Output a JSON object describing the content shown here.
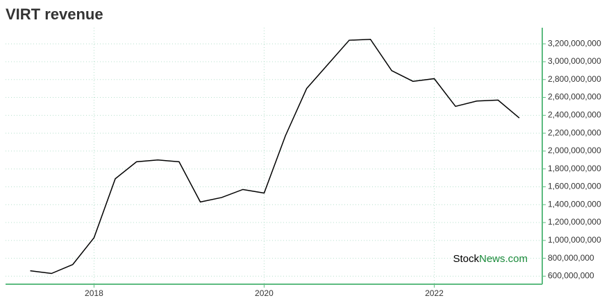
{
  "chart_data": {
    "type": "line",
    "title": "VIRT revenue",
    "x": [
      2017.25,
      2017.5,
      2017.75,
      2018.0,
      2018.25,
      2018.5,
      2018.75,
      2019.0,
      2019.25,
      2019.5,
      2019.75,
      2020.0,
      2020.25,
      2020.5,
      2020.75,
      2021.0,
      2021.25,
      2021.5,
      2021.75,
      2022.0,
      2022.25,
      2022.5,
      2022.75,
      2023.0
    ],
    "series": [
      {
        "color": "#000000",
        "values": [
          660000000,
          630000000,
          730000000,
          1030000000,
          1690000000,
          1880000000,
          1900000000,
          1880000000,
          1430000000,
          1480000000,
          1570000000,
          1530000000,
          2170000000,
          2700000000,
          2970000000,
          3240000000,
          3250000000,
          2900000000,
          2780000000,
          2810000000,
          2500000000,
          2560000000,
          2570000000,
          2370000000
        ]
      }
    ],
    "xlim": [
      2016.96,
      2023.27
    ],
    "xticks": [
      2018,
      2020,
      2022
    ],
    "ylim": [
      510000000,
      3380000000
    ],
    "yticks": [
      {
        "value": 600000000,
        "label": "600,000,000"
      },
      {
        "value": 800000000,
        "label": "800,000,000"
      },
      {
        "value": 1000000000,
        "label": "1,000,000,000"
      },
      {
        "value": 1200000000,
        "label": "1,200,000,000"
      },
      {
        "value": 1400000000,
        "label": "1,400,000,000"
      },
      {
        "value": 1600000000,
        "label": "1,600,000,000"
      },
      {
        "value": 1800000000,
        "label": "1,800,000,000"
      },
      {
        "value": 2000000000,
        "label": "2,000,000,000"
      },
      {
        "value": 2200000000,
        "label": "2,200,000,000"
      },
      {
        "value": 2400000000,
        "label": "2,400,000,000"
      },
      {
        "value": 2600000000,
        "label": "2,600,000,000"
      },
      {
        "value": 2800000000,
        "label": "2,800,000,000"
      },
      {
        "value": 3000000000,
        "label": "3,000,000,000"
      },
      {
        "value": 3200000000,
        "label": "3,200,000,000"
      }
    ],
    "grid": true,
    "axis_color": "#5dbb80",
    "watermark": [
      "Stock",
      "News.com"
    ]
  }
}
